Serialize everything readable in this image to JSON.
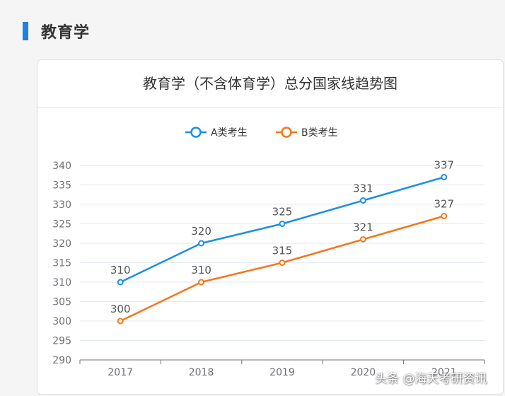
{
  "section": {
    "title": "教育学"
  },
  "watermark": "头条 @海天考研资讯",
  "chart_data": {
    "type": "line",
    "title": "教育学（不含体育学）总分国家线趋势图",
    "categories": [
      "2017",
      "2018",
      "2019",
      "2020",
      "2021"
    ],
    "series": [
      {
        "name": "A类考生",
        "color": "#1a8fe8",
        "values": [
          310,
          320,
          325,
          331,
          337
        ]
      },
      {
        "name": "B类考生",
        "color": "#f5761a",
        "values": [
          300,
          310,
          315,
          321,
          327
        ]
      }
    ],
    "ylim": [
      290,
      340
    ],
    "yticks": [
      290,
      295,
      300,
      305,
      310,
      315,
      320,
      325,
      330,
      335,
      340
    ],
    "grid": true,
    "legend_position": "top-center",
    "data_labels": true
  },
  "colors": {
    "accent": "#1a82e2"
  }
}
